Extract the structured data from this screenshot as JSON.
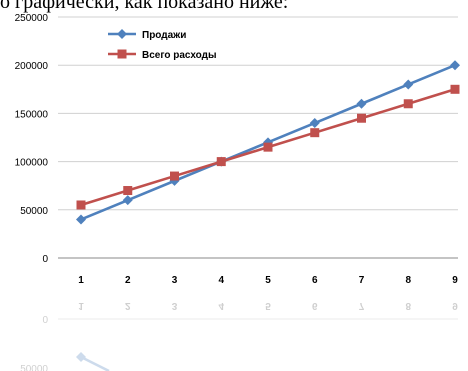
{
  "caption": "о графически, как показано ниже:",
  "chart_data": {
    "type": "line",
    "categories": [
      "1",
      "2",
      "3",
      "4",
      "5",
      "6",
      "7",
      "8",
      "9"
    ],
    "series": [
      {
        "name": "Продажи",
        "color": "#4F81BD",
        "marker": "diamond",
        "values": [
          40000,
          60000,
          80000,
          100000,
          120000,
          140000,
          160000,
          180000,
          200000
        ]
      },
      {
        "name": "Всего расходы",
        "color": "#C0504D",
        "marker": "square",
        "values": [
          55000,
          70000,
          85000,
          100000,
          115000,
          130000,
          145000,
          160000,
          175000
        ]
      }
    ],
    "yticks": [
      0,
      50000,
      100000,
      150000,
      200000,
      250000
    ],
    "ylim": [
      0,
      250000
    ],
    "grid": true,
    "legend_position": "top-left"
  },
  "reflection": {
    "label_zero": "0",
    "label_partial": "50000"
  }
}
